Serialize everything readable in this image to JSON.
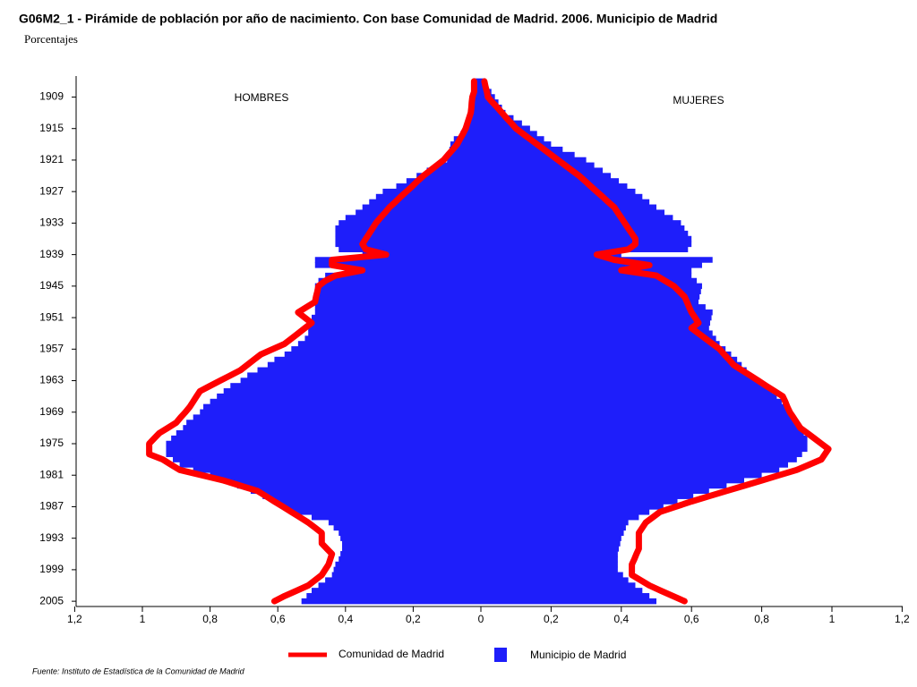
{
  "chart_data": {
    "type": "pyramid",
    "title": "G06M2_1 - Pirámide de población por año de nacimiento. Con base Comunidad de Madrid. 2006.  Municipio de Madrid",
    "subtitle": "Porcentajes",
    "left_label": "HOMBRES",
    "right_label": "MUJERES",
    "source": "Fuente: Instituto de Estadística de la Comunidad de Madrid",
    "ylim": [
      1905,
      2006
    ],
    "yticks": [
      1909,
      1915,
      1921,
      1927,
      1933,
      1939,
      1945,
      1951,
      1957,
      1963,
      1969,
      1975,
      1981,
      1987,
      1993,
      1999,
      2005
    ],
    "xlim": [
      0,
      1.2
    ],
    "xticks": [
      0,
      {
        "value": 0.2,
        "label": "0,2"
      },
      {
        "value": 0.4,
        "label": "0,4"
      },
      {
        "value": 0.6,
        "label": "0,6"
      },
      {
        "value": 0.8,
        "label": "0,8"
      },
      1,
      {
        "value": 1.2,
        "label": "1,2"
      }
    ],
    "x": [
      1906,
      1907,
      1908,
      1909,
      1910,
      1911,
      1912,
      1913,
      1914,
      1915,
      1916,
      1917,
      1918,
      1919,
      1920,
      1921,
      1922,
      1923,
      1924,
      1925,
      1926,
      1927,
      1928,
      1929,
      1930,
      1931,
      1932,
      1933,
      1934,
      1935,
      1936,
      1937,
      1938,
      1939,
      1940,
      1941,
      1942,
      1943,
      1944,
      1945,
      1946,
      1947,
      1948,
      1949,
      1950,
      1951,
      1952,
      1953,
      1954,
      1955,
      1956,
      1957,
      1958,
      1959,
      1960,
      1961,
      1962,
      1963,
      1964,
      1965,
      1966,
      1967,
      1968,
      1969,
      1970,
      1971,
      1972,
      1973,
      1974,
      1975,
      1976,
      1977,
      1978,
      1979,
      1980,
      1981,
      1982,
      1983,
      1984,
      1985,
      1986,
      1987,
      1988,
      1989,
      1990,
      1991,
      1992,
      1993,
      1994,
      1995,
      1996,
      1997,
      1998,
      1999,
      2000,
      2001,
      2002,
      2003,
      2004,
      2005
    ],
    "series": [
      {
        "name": "Municipio de Madrid",
        "color": "#1e1efa",
        "style": "bar",
        "hombres": [
          0.02,
          0.02,
          0.025,
          0.028,
          0.03,
          0.032,
          0.035,
          0.037,
          0.039,
          0.04,
          0.06,
          0.08,
          0.09,
          0.093,
          0.097,
          0.1,
          0.13,
          0.16,
          0.19,
          0.22,
          0.25,
          0.29,
          0.31,
          0.33,
          0.35,
          0.37,
          0.4,
          0.42,
          0.43,
          0.43,
          0.43,
          0.43,
          0.42,
          0.35,
          0.49,
          0.49,
          0.4,
          0.46,
          0.48,
          0.49,
          0.49,
          0.49,
          0.49,
          0.49,
          0.49,
          0.5,
          0.5,
          0.51,
          0.51,
          0.52,
          0.54,
          0.56,
          0.58,
          0.61,
          0.63,
          0.66,
          0.69,
          0.71,
          0.74,
          0.76,
          0.78,
          0.8,
          0.82,
          0.83,
          0.85,
          0.87,
          0.88,
          0.9,
          0.915,
          0.93,
          0.93,
          0.93,
          0.91,
          0.89,
          0.85,
          0.8,
          0.76,
          0.72,
          0.68,
          0.645,
          0.61,
          0.585,
          0.56,
          0.5,
          0.45,
          0.435,
          0.42,
          0.415,
          0.41,
          0.41,
          0.415,
          0.42,
          0.43,
          0.435,
          0.44,
          0.46,
          0.48,
          0.5,
          0.515,
          0.53
        ],
        "mujeres": [
          0.01,
          0.02,
          0.03,
          0.04,
          0.05,
          0.06,
          0.07,
          0.093,
          0.117,
          0.14,
          0.16,
          0.18,
          0.2,
          0.233,
          0.267,
          0.3,
          0.323,
          0.347,
          0.37,
          0.393,
          0.417,
          0.44,
          0.46,
          0.48,
          0.5,
          0.523,
          0.547,
          0.57,
          0.58,
          0.59,
          0.6,
          0.6,
          0.59,
          0.4,
          0.66,
          0.63,
          0.6,
          0.6,
          0.615,
          0.63,
          0.627,
          0.623,
          0.62,
          0.64,
          0.66,
          0.657,
          0.653,
          0.65,
          0.66,
          0.67,
          0.68,
          0.697,
          0.713,
          0.73,
          0.743,
          0.757,
          0.77,
          0.79,
          0.81,
          0.83,
          0.843,
          0.857,
          0.87,
          0.88,
          0.89,
          0.9,
          0.91,
          0.92,
          0.93,
          0.93,
          0.93,
          0.915,
          0.9,
          0.875,
          0.85,
          0.8,
          0.75,
          0.7,
          0.65,
          0.605,
          0.56,
          0.52,
          0.48,
          0.45,
          0.42,
          0.413,
          0.407,
          0.4,
          0.397,
          0.393,
          0.39,
          0.39,
          0.39,
          0.39,
          0.405,
          0.42,
          0.44,
          0.46,
          0.48,
          0.5
        ]
      },
      {
        "name": "Comunidad de Madrid",
        "color": "#ff0000",
        "style": "line",
        "hombres": [
          0.02,
          0.02,
          0.02,
          0.025,
          0.027,
          0.028,
          0.03,
          0.035,
          0.04,
          0.045,
          0.053,
          0.062,
          0.07,
          0.083,
          0.097,
          0.11,
          0.13,
          0.15,
          0.17,
          0.187,
          0.203,
          0.22,
          0.237,
          0.253,
          0.27,
          0.283,
          0.297,
          0.31,
          0.32,
          0.33,
          0.34,
          0.35,
          0.34,
          0.28,
          0.44,
          0.44,
          0.35,
          0.43,
          0.46,
          0.48,
          0.483,
          0.487,
          0.49,
          0.515,
          0.54,
          0.52,
          0.5,
          0.52,
          0.54,
          0.56,
          0.58,
          0.615,
          0.65,
          0.67,
          0.69,
          0.71,
          0.74,
          0.77,
          0.8,
          0.83,
          0.84,
          0.85,
          0.86,
          0.873,
          0.887,
          0.9,
          0.925,
          0.95,
          0.965,
          0.98,
          0.98,
          0.98,
          0.94,
          0.915,
          0.89,
          0.825,
          0.76,
          0.71,
          0.66,
          0.635,
          0.61,
          0.585,
          0.56,
          0.535,
          0.51,
          0.49,
          0.47,
          0.47,
          0.47,
          0.455,
          0.44,
          0.445,
          0.45,
          0.46,
          0.47,
          0.49,
          0.51,
          0.545,
          0.58,
          0.61
        ],
        "mujeres": [
          0.01,
          0.013,
          0.017,
          0.02,
          0.033,
          0.047,
          0.06,
          0.073,
          0.087,
          0.1,
          0.12,
          0.14,
          0.16,
          0.18,
          0.2,
          0.22,
          0.24,
          0.26,
          0.28,
          0.297,
          0.313,
          0.33,
          0.347,
          0.363,
          0.38,
          0.39,
          0.4,
          0.41,
          0.42,
          0.43,
          0.44,
          0.44,
          0.42,
          0.33,
          0.38,
          0.48,
          0.4,
          0.5,
          0.525,
          0.55,
          0.565,
          0.58,
          0.587,
          0.593,
          0.6,
          0.61,
          0.62,
          0.6,
          0.62,
          0.64,
          0.66,
          0.68,
          0.693,
          0.707,
          0.72,
          0.743,
          0.767,
          0.79,
          0.813,
          0.837,
          0.86,
          0.867,
          0.873,
          0.88,
          0.89,
          0.9,
          0.91,
          0.93,
          0.95,
          0.97,
          0.99,
          0.98,
          0.97,
          0.935,
          0.9,
          0.85,
          0.8,
          0.75,
          0.7,
          0.65,
          0.6,
          0.555,
          0.51,
          0.49,
          0.47,
          0.46,
          0.45,
          0.45,
          0.45,
          0.45,
          0.443,
          0.437,
          0.43,
          0.43,
          0.43,
          0.455,
          0.48,
          0.513,
          0.547,
          0.58
        ]
      }
    ]
  }
}
